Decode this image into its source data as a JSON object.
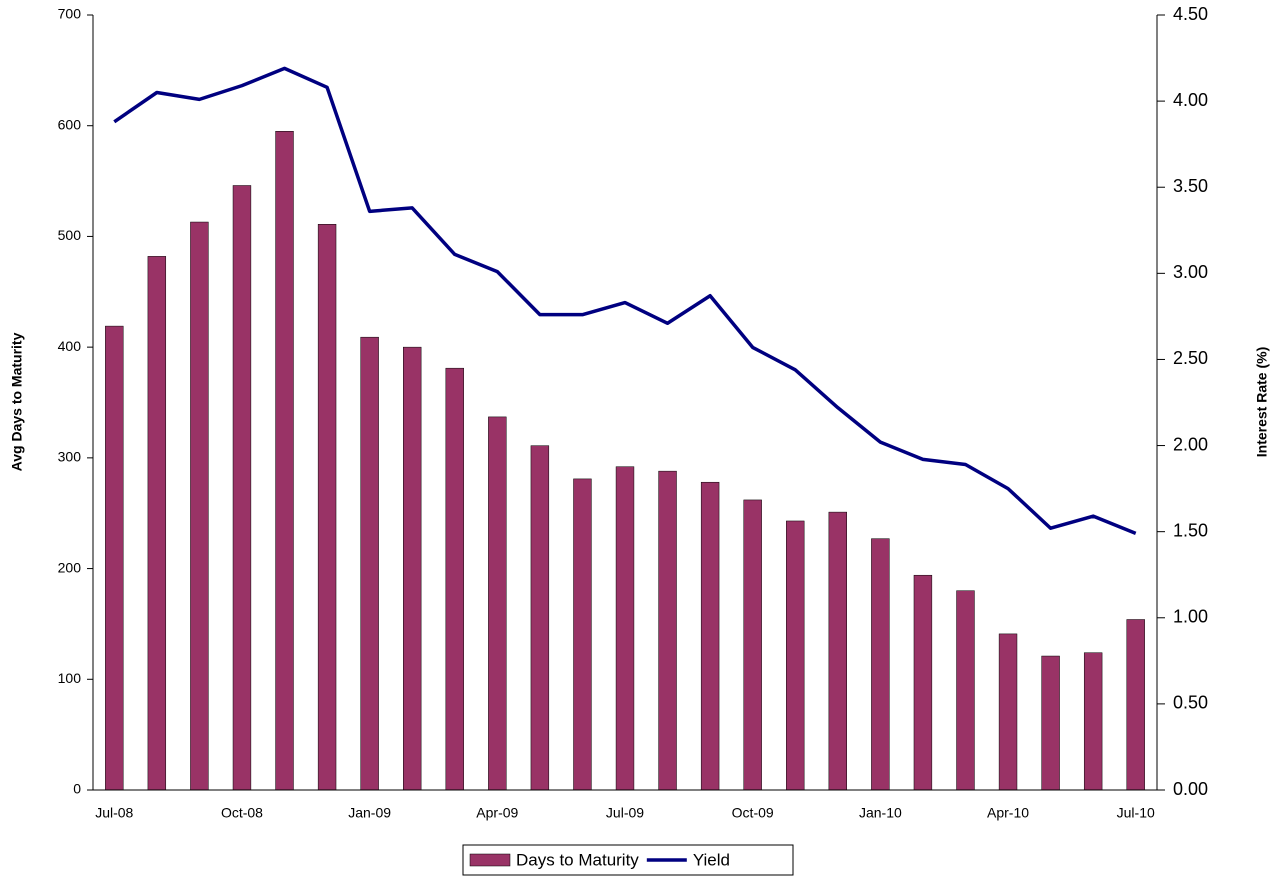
{
  "chart_data": {
    "type": "bar",
    "y_label": "Avg Days to Maturity",
    "y2_label": "Interest Rate (%)",
    "categories": [
      "Jul-08",
      null,
      null,
      "Oct-08",
      null,
      null,
      "Jan-09",
      null,
      null,
      "Apr-09",
      null,
      null,
      "Jul-09",
      null,
      null,
      "Oct-09",
      null,
      null,
      "Jan-10",
      null,
      null,
      "Apr-10",
      null,
      null,
      "Jul-10"
    ],
    "series": [
      {
        "name": "Days to Maturity",
        "type": "bar",
        "color": "#993366",
        "values": [
          419,
          482,
          513,
          546,
          595,
          511,
          409,
          400,
          381,
          337,
          311,
          281,
          292,
          288,
          278,
          262,
          243,
          251,
          227,
          194,
          180,
          141,
          121,
          124,
          154
        ]
      },
      {
        "name": "Yield",
        "type": "line",
        "axis": "y2",
        "color": "#000080",
        "values": [
          3.88,
          4.05,
          4.01,
          4.09,
          4.19,
          4.08,
          3.36,
          3.38,
          3.11,
          3.01,
          2.76,
          2.76,
          2.83,
          2.71,
          2.87,
          2.57,
          2.44,
          2.22,
          2.02,
          1.92,
          1.89,
          1.75,
          1.52,
          1.59,
          1.49
        ]
      }
    ],
    "ylim": [
      0,
      700
    ],
    "yticks": [
      0,
      100,
      200,
      300,
      400,
      500,
      600,
      700
    ],
    "y2lim": [
      0,
      4.5
    ],
    "y2ticks": [
      {
        "value": 0,
        "label": "0.00"
      },
      {
        "value": 0.5,
        "label": "0.50"
      },
      {
        "value": 1,
        "label": "1.00"
      },
      {
        "value": 1.5,
        "label": "1.50"
      },
      {
        "value": 2,
        "label": "2.00"
      },
      {
        "value": 2.5,
        "label": "2.50"
      },
      {
        "value": 3,
        "label": "3.00"
      },
      {
        "value": 3.5,
        "label": "3.50"
      },
      {
        "value": 4,
        "label": "4.00"
      },
      {
        "value": 4.5,
        "label": "4.50"
      }
    ],
    "grid": false,
    "legend": "bottom"
  }
}
